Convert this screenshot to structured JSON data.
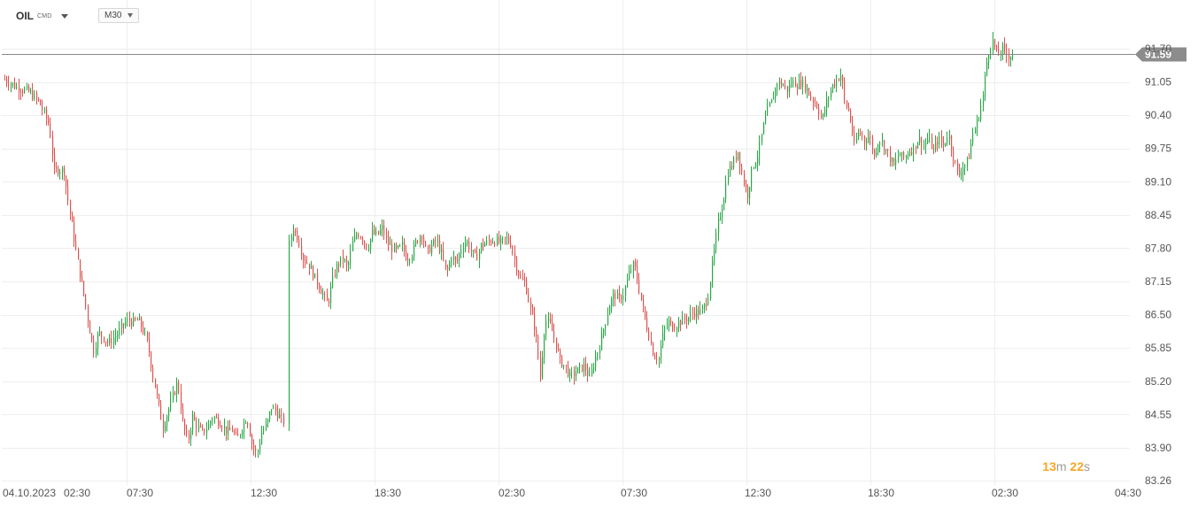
{
  "toolbar": {
    "symbol": "OIL",
    "symbol_suffix": "CMD",
    "timeframe": "M30"
  },
  "timer": {
    "minutes": "13",
    "m": "m",
    "seconds": "22",
    "s": "s"
  },
  "colors": {
    "bull": "#27a745",
    "bear": "#d9534f",
    "grid": "#eeeeee",
    "axis_text": "#555555",
    "price_line": "#888888",
    "price_tag_bg": "#8c8c8c",
    "timer": "#f5a623"
  },
  "chart_data": {
    "type": "candlestick",
    "title": "",
    "symbol": "OIL",
    "timeframe": "M30",
    "ylim": [
      83.26,
      92.0
    ],
    "y_ticks": [
      "91.70",
      "91.05",
      "90.40",
      "89.75",
      "89.10",
      "88.45",
      "87.80",
      "87.15",
      "86.50",
      "85.85",
      "85.20",
      "84.55",
      "83.90",
      "83.26"
    ],
    "x_tick_labels": [
      "04.10.2023",
      "02:30",
      "07:30",
      "12:30",
      "18:30",
      "02:30",
      "07:30",
      "12:30",
      "18:30",
      "02:30",
      "04:30"
    ],
    "current_price": "91.59",
    "close_path": [
      [
        0,
        91.1
      ],
      [
        12,
        90.95
      ],
      [
        25,
        90.85
      ],
      [
        35,
        90.65
      ],
      [
        45,
        90.2
      ],
      [
        50,
        89.3
      ],
      [
        55,
        89.35
      ],
      [
        60,
        89.3
      ],
      [
        65,
        88.6
      ],
      [
        70,
        88.0
      ],
      [
        75,
        87.4
      ],
      [
        80,
        86.9
      ],
      [
        85,
        86.3
      ],
      [
        90,
        85.8
      ],
      [
        95,
        86.15
      ],
      [
        100,
        86.05
      ],
      [
        105,
        85.95
      ],
      [
        110,
        86.05
      ],
      [
        115,
        86.15
      ],
      [
        120,
        86.3
      ],
      [
        125,
        86.4
      ],
      [
        130,
        86.35
      ],
      [
        135,
        86.4
      ],
      [
        140,
        86.2
      ],
      [
        145,
        85.9
      ],
      [
        150,
        85.3
      ],
      [
        155,
        84.8
      ],
      [
        160,
        84.3
      ],
      [
        165,
        84.6
      ],
      [
        170,
        84.9
      ],
      [
        175,
        85.2
      ],
      [
        180,
        84.4
      ],
      [
        185,
        84.0
      ],
      [
        190,
        84.5
      ],
      [
        195,
        84.3
      ],
      [
        200,
        84.2
      ],
      [
        205,
        84.3
      ],
      [
        210,
        84.5
      ],
      [
        215,
        84.45
      ],
      [
        220,
        84.35
      ],
      [
        225,
        84.2
      ],
      [
        230,
        84.25
      ],
      [
        235,
        84.05
      ],
      [
        240,
        84.3
      ],
      [
        245,
        84.5
      ],
      [
        250,
        84.0
      ],
      [
        255,
        83.75
      ],
      [
        260,
        84.2
      ],
      [
        265,
        84.35
      ],
      [
        270,
        84.7
      ],
      [
        275,
        84.6
      ],
      [
        280,
        84.45
      ],
      [
        283,
        84.4
      ],
      [
        287,
        87.8
      ],
      [
        292,
        88.2
      ],
      [
        297,
        88.0
      ],
      [
        302,
        87.6
      ],
      [
        307,
        87.5
      ],
      [
        312,
        87.3
      ],
      [
        317,
        87.1
      ],
      [
        322,
        86.9
      ],
      [
        327,
        86.7
      ],
      [
        332,
        87.2
      ],
      [
        337,
        87.5
      ],
      [
        342,
        87.6
      ],
      [
        347,
        87.4
      ],
      [
        352,
        87.9
      ],
      [
        357,
        88.1
      ],
      [
        362,
        88.0
      ],
      [
        367,
        87.8
      ],
      [
        372,
        88.1
      ],
      [
        377,
        88.05
      ],
      [
        382,
        88.2
      ],
      [
        387,
        87.9
      ],
      [
        392,
        87.8
      ],
      [
        397,
        87.75
      ],
      [
        402,
        87.85
      ],
      [
        407,
        87.6
      ],
      [
        412,
        87.7
      ],
      [
        417,
        87.95
      ],
      [
        422,
        88.1
      ],
      [
        427,
        87.7
      ],
      [
        432,
        87.85
      ],
      [
        437,
        87.95
      ],
      [
        442,
        87.7
      ],
      [
        447,
        87.3
      ],
      [
        452,
        87.65
      ],
      [
        457,
        87.5
      ],
      [
        462,
        87.8
      ],
      [
        467,
        87.95
      ],
      [
        472,
        87.75
      ],
      [
        477,
        87.6
      ],
      [
        482,
        87.85
      ],
      [
        487,
        87.9
      ],
      [
        492,
        87.95
      ],
      [
        497,
        87.95
      ],
      [
        502,
        87.9
      ],
      [
        507,
        88.0
      ],
      [
        512,
        87.9
      ],
      [
        517,
        87.5
      ],
      [
        522,
        87.2
      ],
      [
        527,
        87.1
      ],
      [
        532,
        86.6
      ],
      [
        537,
        86.2
      ],
      [
        542,
        85.3
      ],
      [
        547,
        86.4
      ],
      [
        552,
        86.3
      ],
      [
        557,
        86.0
      ],
      [
        562,
        85.6
      ],
      [
        567,
        85.5
      ],
      [
        572,
        85.3
      ],
      [
        577,
        85.35
      ],
      [
        582,
        85.45
      ],
      [
        587,
        85.5
      ],
      [
        592,
        85.25
      ],
      [
        597,
        85.6
      ],
      [
        602,
        85.9
      ],
      [
        607,
        86.3
      ],
      [
        612,
        86.7
      ],
      [
        617,
        86.9
      ],
      [
        622,
        86.8
      ],
      [
        627,
        86.95
      ],
      [
        632,
        87.3
      ],
      [
        637,
        87.5
      ],
      [
        642,
        87.0
      ],
      [
        647,
        86.5
      ],
      [
        652,
        86.1
      ],
      [
        657,
        85.7
      ],
      [
        662,
        85.65
      ],
      [
        667,
        86.2
      ],
      [
        672,
        86.35
      ],
      [
        677,
        86.25
      ],
      [
        682,
        86.35
      ],
      [
        687,
        86.4
      ],
      [
        692,
        86.45
      ],
      [
        697,
        86.55
      ],
      [
        702,
        86.55
      ],
      [
        707,
        86.6
      ],
      [
        712,
        86.9
      ],
      [
        717,
        87.6
      ],
      [
        722,
        88.3
      ],
      [
        727,
        88.7
      ],
      [
        732,
        89.3
      ],
      [
        737,
        89.45
      ],
      [
        742,
        89.7
      ],
      [
        747,
        89.15
      ],
      [
        752,
        88.85
      ],
      [
        757,
        89.4
      ],
      [
        762,
        89.6
      ],
      [
        767,
        90.1
      ],
      [
        772,
        90.5
      ],
      [
        777,
        90.7
      ],
      [
        782,
        91.05
      ],
      [
        787,
        91.0
      ],
      [
        792,
        90.9
      ],
      [
        797,
        91.05
      ],
      [
        802,
        91.0
      ],
      [
        807,
        91.05
      ],
      [
        812,
        90.9
      ],
      [
        817,
        90.7
      ],
      [
        822,
        90.6
      ],
      [
        827,
        90.3
      ],
      [
        832,
        90.65
      ],
      [
        837,
        90.95
      ],
      [
        842,
        91.1
      ],
      [
        847,
        91.2
      ],
      [
        850,
        90.65
      ],
      [
        855,
        90.45
      ],
      [
        860,
        89.8
      ],
      [
        865,
        90.1
      ],
      [
        870,
        89.9
      ],
      [
        875,
        90.0
      ],
      [
        880,
        89.6
      ],
      [
        885,
        89.95
      ],
      [
        890,
        89.8
      ],
      [
        895,
        89.6
      ],
      [
        900,
        89.4
      ],
      [
        905,
        89.65
      ],
      [
        910,
        89.55
      ],
      [
        915,
        89.7
      ],
      [
        920,
        89.75
      ],
      [
        925,
        89.95
      ],
      [
        930,
        89.8
      ],
      [
        935,
        89.95
      ],
      [
        940,
        89.7
      ],
      [
        945,
        89.95
      ],
      [
        950,
        89.8
      ],
      [
        955,
        90.05
      ],
      [
        960,
        89.6
      ],
      [
        965,
        89.2
      ],
      [
        970,
        89.4
      ],
      [
        975,
        89.5
      ],
      [
        980,
        90.05
      ],
      [
        985,
        90.3
      ],
      [
        990,
        90.8
      ],
      [
        995,
        91.6
      ],
      [
        1000,
        91.85
      ],
      [
        1005,
        91.55
      ],
      [
        1010,
        91.7
      ],
      [
        1015,
        91.55
      ],
      [
        1020,
        91.59
      ]
    ]
  }
}
